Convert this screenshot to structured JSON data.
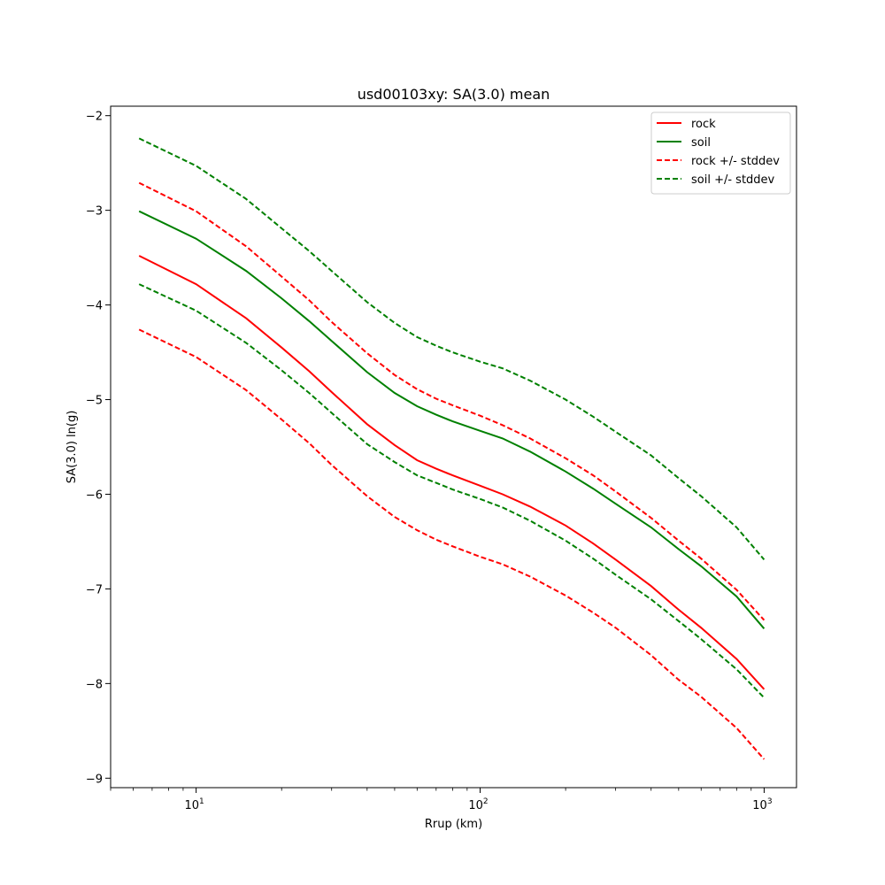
{
  "chart_data": {
    "type": "line",
    "title": "usd00103xy: SA(3.0) mean",
    "xlabel": "Rrup (km)",
    "ylabel": "SA(3.0) ln(g)",
    "xscale": "log",
    "xlim": [
      5,
      1300
    ],
    "ylim": [
      -9.1,
      -1.9
    ],
    "xticks": [
      {
        "value": 10,
        "base": "10",
        "exp": "1"
      },
      {
        "value": 100,
        "base": "10",
        "exp": "2"
      },
      {
        "value": 1000,
        "base": "10",
        "exp": "3"
      }
    ],
    "yticks": [
      -9,
      -8,
      -7,
      -6,
      -5,
      -4,
      -3,
      -2
    ],
    "ytick_labels": [
      "−9",
      "−8",
      "−7",
      "−6",
      "−5",
      "−4",
      "−3",
      "−2"
    ],
    "grid": false,
    "legend_position": "top-right",
    "x": [
      6.3,
      10,
      15,
      20,
      25,
      30,
      40,
      50,
      60,
      70,
      80,
      100,
      120,
      150,
      200,
      250,
      300,
      400,
      500,
      600,
      800,
      1000
    ],
    "series": [
      {
        "name": "rock",
        "color": "#ff0000",
        "style": "solid",
        "values": [
          -3.48,
          -3.78,
          -4.14,
          -4.45,
          -4.7,
          -4.92,
          -5.26,
          -5.48,
          -5.64,
          -5.73,
          -5.8,
          -5.91,
          -6.0,
          -6.13,
          -6.33,
          -6.52,
          -6.69,
          -6.97,
          -7.22,
          -7.41,
          -7.74,
          -8.06
        ]
      },
      {
        "name": "soil",
        "color": "#008000",
        "style": "solid",
        "values": [
          -3.01,
          -3.3,
          -3.64,
          -3.93,
          -4.17,
          -4.38,
          -4.71,
          -4.93,
          -5.07,
          -5.16,
          -5.23,
          -5.33,
          -5.41,
          -5.55,
          -5.76,
          -5.94,
          -6.1,
          -6.35,
          -6.58,
          -6.76,
          -7.08,
          -7.42
        ]
      },
      {
        "name": "rock +/- stddev",
        "color": "#ff0000",
        "style": "dashed",
        "values": [
          -2.71,
          -3.01,
          -3.38,
          -3.7,
          -3.95,
          -4.18,
          -4.51,
          -4.74,
          -4.89,
          -4.99,
          -5.06,
          -5.17,
          -5.27,
          -5.41,
          -5.62,
          -5.8,
          -5.97,
          -6.25,
          -6.49,
          -6.68,
          -7.01,
          -7.33
        ]
      },
      {
        "name": "rock +/- stddev lower",
        "color": "#ff0000",
        "style": "dashed",
        "legend": false,
        "values": [
          -4.26,
          -4.55,
          -4.9,
          -5.21,
          -5.46,
          -5.69,
          -6.02,
          -6.24,
          -6.38,
          -6.48,
          -6.55,
          -6.66,
          -6.74,
          -6.87,
          -7.07,
          -7.25,
          -7.41,
          -7.7,
          -7.96,
          -8.14,
          -8.47,
          -8.8
        ]
      },
      {
        "name": "soil +/- stddev",
        "color": "#008000",
        "style": "dashed",
        "values": [
          -2.24,
          -2.53,
          -2.88,
          -3.19,
          -3.43,
          -3.64,
          -3.97,
          -4.19,
          -4.34,
          -4.43,
          -4.5,
          -4.6,
          -4.67,
          -4.8,
          -5.0,
          -5.18,
          -5.34,
          -5.59,
          -5.83,
          -6.02,
          -6.35,
          -6.69
        ]
      },
      {
        "name": "soil +/- stddev lower",
        "color": "#008000",
        "style": "dashed",
        "legend": false,
        "values": [
          -3.78,
          -4.06,
          -4.4,
          -4.69,
          -4.93,
          -5.14,
          -5.47,
          -5.66,
          -5.8,
          -5.88,
          -5.95,
          -6.05,
          -6.14,
          -6.28,
          -6.49,
          -6.68,
          -6.85,
          -7.11,
          -7.34,
          -7.53,
          -7.85,
          -8.15
        ]
      }
    ]
  }
}
